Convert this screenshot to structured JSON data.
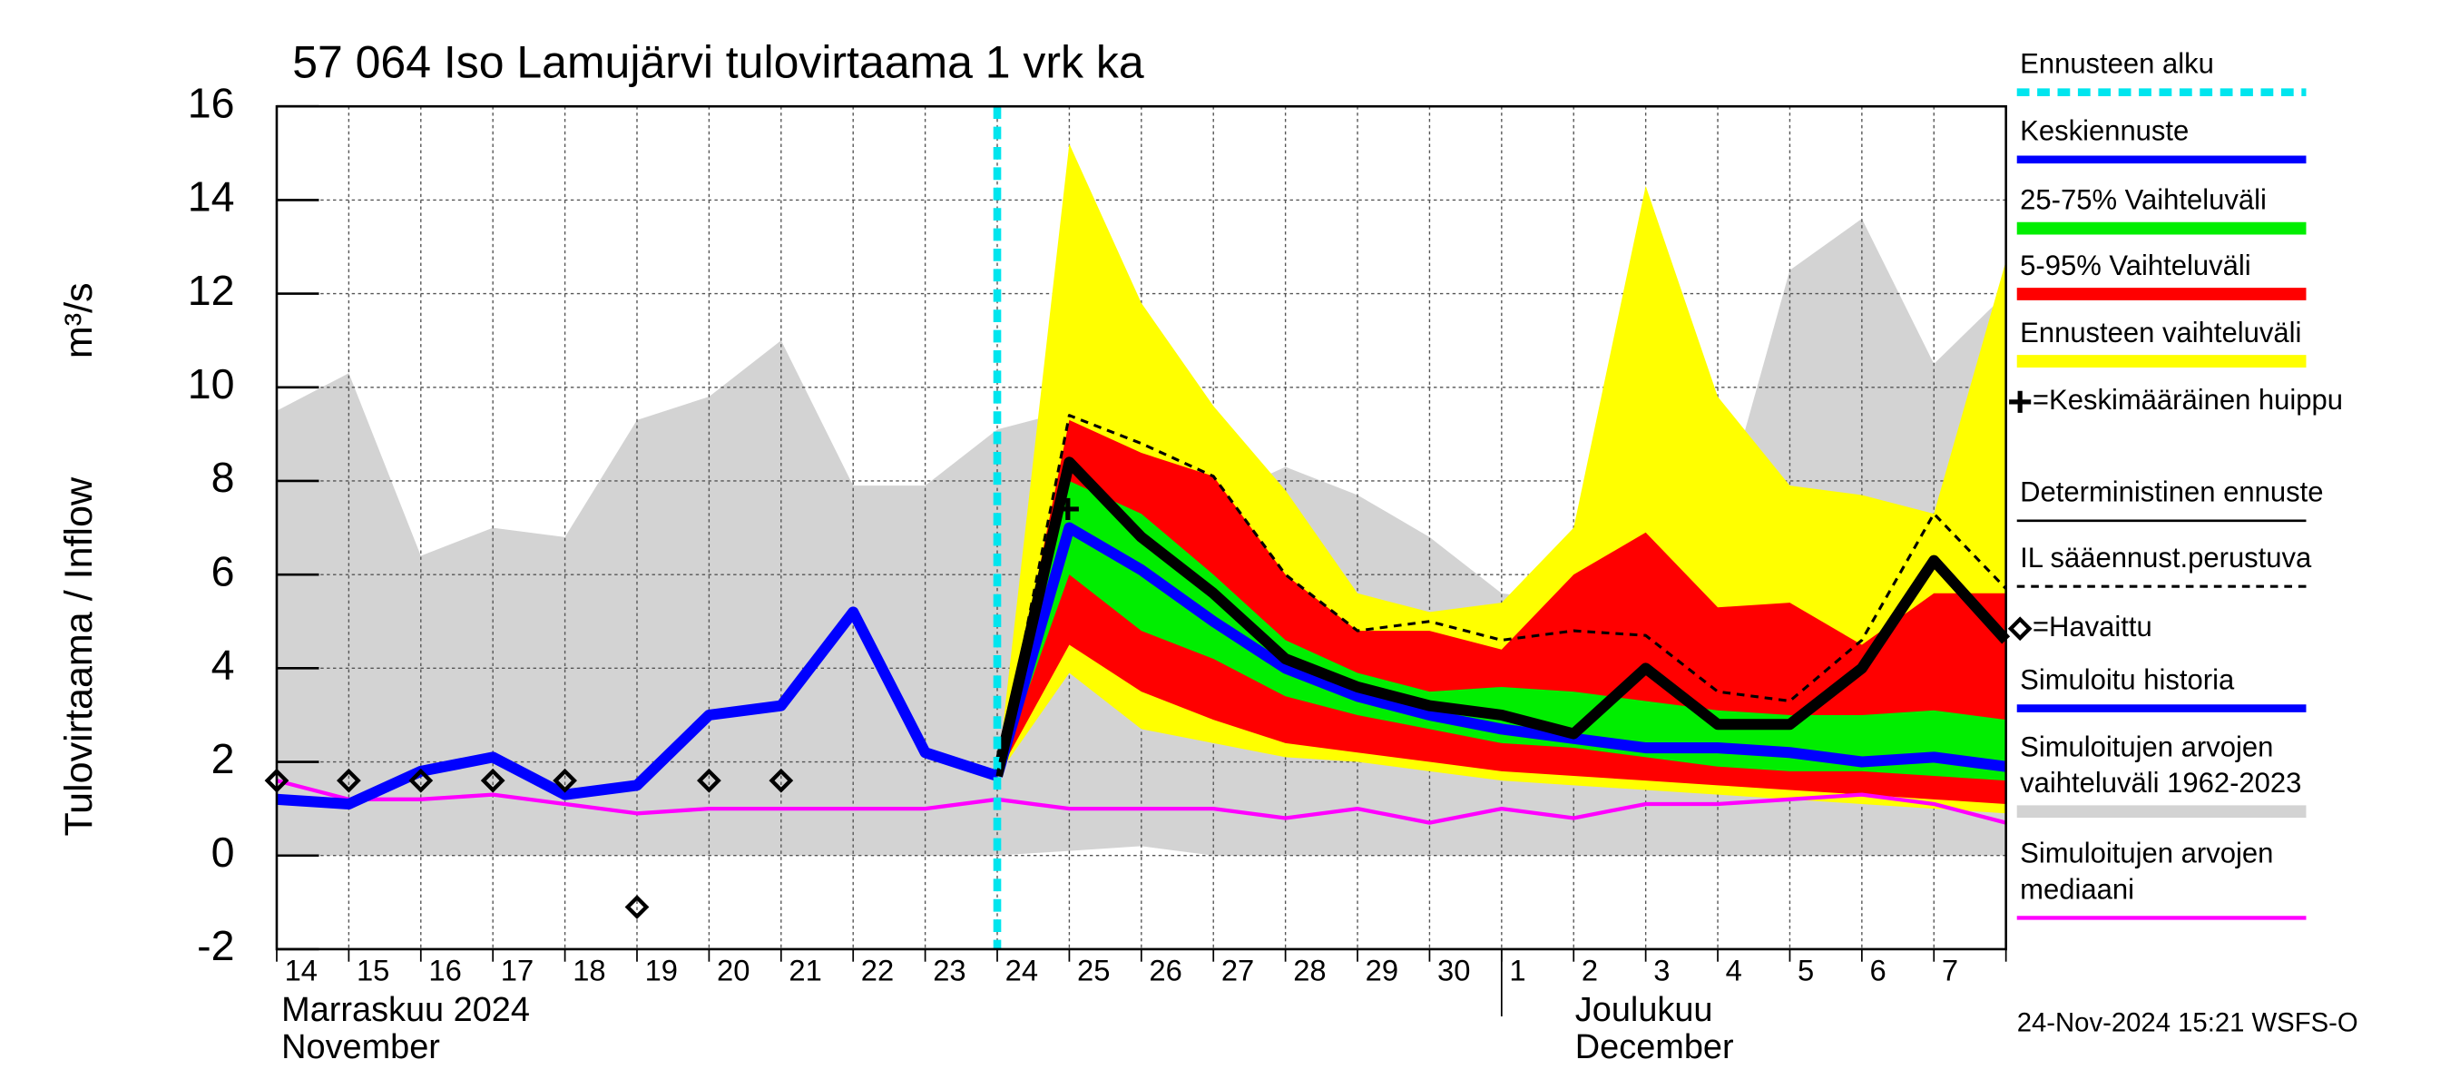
{
  "chart_data": {
    "type": "line",
    "title": "57 064 Iso Lamujärvi tulovirtaama 1 vrk ka",
    "y_label": "Tulovirtaama / Inflow",
    "y_unit": "m³/s",
    "footer": "24-Nov-2024 15:21 WSFS-O",
    "categories": [
      "14",
      "15",
      "16",
      "17",
      "18",
      "19",
      "20",
      "21",
      "22",
      "23",
      "24",
      "25",
      "26",
      "27",
      "28",
      "29",
      "30",
      "1",
      "2",
      "3",
      "4",
      "5",
      "6",
      "7",
      null
    ],
    "month_labels": [
      {
        "lines": [
          "Marraskuu 2024",
          "November"
        ],
        "start": 0
      },
      {
        "lines": [
          "Joulukuu",
          "December"
        ],
        "start": 17
      }
    ],
    "xlim": [
      0,
      24
    ],
    "ylim": [
      -2,
      16
    ],
    "yticks": [
      -2,
      0,
      2,
      4,
      6,
      8,
      10,
      12,
      14,
      16
    ],
    "grid": true,
    "series": [
      {
        "name": "Ennusteen alku",
        "kind": "vline",
        "color": "#00e5ee",
        "x": 10
      },
      {
        "name": "Keskiennuste",
        "kind": "line",
        "color": "#0000ff",
        "values": [
          null,
          null,
          null,
          null,
          null,
          null,
          null,
          null,
          null,
          null,
          1.7,
          7.0,
          6.1,
          5.0,
          4.0,
          3.4,
          3.0,
          2.7,
          2.5,
          2.3,
          2.3,
          2.2,
          2.0,
          2.1,
          1.9
        ]
      },
      {
        "name": "25-75% Vaihteluväli",
        "kind": "band",
        "color": "#00ee00",
        "upper": [
          null,
          null,
          null,
          null,
          null,
          null,
          null,
          null,
          null,
          null,
          1.7,
          8.0,
          7.3,
          6.0,
          4.6,
          3.9,
          3.5,
          3.6,
          3.5,
          3.3,
          3.1,
          3.0,
          3.0,
          3.1,
          2.9
        ],
        "lower": [
          null,
          null,
          null,
          null,
          null,
          null,
          null,
          null,
          null,
          null,
          1.7,
          6.0,
          4.8,
          4.2,
          3.4,
          3.0,
          2.7,
          2.4,
          2.3,
          2.1,
          1.9,
          1.8,
          1.8,
          1.7,
          1.6
        ]
      },
      {
        "name": "5-95% Vaihteluväli",
        "kind": "band",
        "color": "#ff0000",
        "upper": [
          null,
          null,
          null,
          null,
          null,
          null,
          null,
          null,
          null,
          null,
          1.7,
          9.3,
          8.6,
          8.1,
          6.0,
          4.8,
          4.8,
          4.4,
          6.0,
          6.9,
          5.3,
          5.4,
          4.5,
          5.6,
          5.6
        ],
        "lower": [
          null,
          null,
          null,
          null,
          null,
          null,
          null,
          null,
          null,
          null,
          1.7,
          4.5,
          3.5,
          2.9,
          2.4,
          2.2,
          2.0,
          1.8,
          1.7,
          1.6,
          1.5,
          1.4,
          1.3,
          1.2,
          1.1
        ]
      },
      {
        "name": "Ennusteen vaihteluväli",
        "kind": "band",
        "color": "#ffff00",
        "upper": [
          null,
          null,
          null,
          null,
          null,
          null,
          null,
          null,
          null,
          null,
          1.7,
          15.2,
          11.8,
          9.6,
          7.8,
          5.6,
          5.2,
          5.4,
          7.0,
          14.3,
          9.8,
          7.9,
          7.7,
          7.3,
          12.7
        ],
        "lower": [
          null,
          null,
          null,
          null,
          null,
          null,
          null,
          null,
          null,
          null,
          1.7,
          3.9,
          2.7,
          2.4,
          2.1,
          2.0,
          1.8,
          1.6,
          1.5,
          1.4,
          1.3,
          1.2,
          1.1,
          1.0,
          0.9
        ]
      },
      {
        "name": "=Keskimääräinen huippu",
        "kind": "peak",
        "color": "#000000",
        "x": 10.98,
        "value": 7.4
      },
      {
        "name": "Deterministinen ennuste",
        "kind": "line",
        "color": "#000000",
        "values": [
          null,
          null,
          null,
          null,
          null,
          null,
          null,
          null,
          null,
          null,
          1.7,
          8.4,
          6.8,
          5.6,
          4.2,
          3.6,
          3.2,
          3.0,
          2.6,
          4.0,
          2.8,
          2.8,
          4.0,
          6.3,
          4.6
        ]
      },
      {
        "name": "IL sääennust.perustuva",
        "kind": "dashed",
        "color": "#000000",
        "values": [
          null,
          null,
          null,
          null,
          null,
          null,
          null,
          null,
          null,
          null,
          1.7,
          9.4,
          8.8,
          8.1,
          6.0,
          4.8,
          5.0,
          4.6,
          4.8,
          4.7,
          3.5,
          3.3,
          4.6,
          7.3,
          5.7
        ]
      },
      {
        "name": "=Havaittu",
        "kind": "markers",
        "color": "#000000",
        "values": [
          1.6,
          1.6,
          1.6,
          1.6,
          1.6,
          -1.1,
          1.6,
          1.6,
          null,
          null,
          null,
          null,
          null,
          null,
          null,
          null,
          null,
          null,
          null,
          null,
          null,
          null,
          null,
          null,
          null
        ]
      },
      {
        "name": "Simuloitu historia",
        "kind": "line",
        "color": "#0000ff",
        "values": [
          1.2,
          1.1,
          1.8,
          2.1,
          1.3,
          1.5,
          3.0,
          3.2,
          5.2,
          2.2,
          1.7,
          null,
          null,
          null,
          null,
          null,
          null,
          null,
          null,
          null,
          null,
          null,
          null,
          null,
          null
        ]
      },
      {
        "name": [
          "Simuloitujen arvojen",
          "vaihteluväli 1962-2023"
        ],
        "kind": "band",
        "color": "#d3d3d3",
        "upper": [
          9.5,
          10.3,
          6.4,
          7.0,
          6.8,
          9.3,
          9.8,
          11.0,
          7.9,
          7.9,
          9.1,
          9.5,
          8.4,
          7.6,
          8.3,
          7.7,
          6.8,
          5.6,
          5.4,
          4.8,
          7.0,
          12.5,
          13.6,
          10.5,
          12.0
        ],
        "lower": [
          0,
          0,
          0,
          0,
          0,
          0,
          0,
          0,
          0,
          0,
          0,
          0.1,
          0.2,
          0,
          0,
          0,
          0,
          0,
          0,
          0,
          0,
          0,
          0,
          0,
          0
        ]
      },
      {
        "name": [
          "Simuloitujen arvojen",
          "mediaani"
        ],
        "kind": "line",
        "color": "#ff00ff",
        "values": [
          1.6,
          1.2,
          1.2,
          1.3,
          1.1,
          0.9,
          1.0,
          1.0,
          1.0,
          1.0,
          1.2,
          1.0,
          1.0,
          1.0,
          0.8,
          1.0,
          0.7,
          1.0,
          0.8,
          1.1,
          1.1,
          1.2,
          1.3,
          1.1,
          0.7
        ]
      }
    ]
  }
}
